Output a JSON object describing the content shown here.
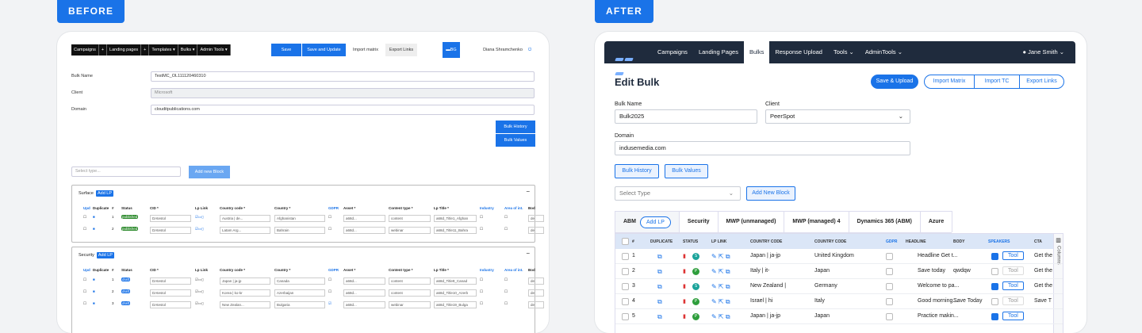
{
  "before_tag": "BEFORE",
  "after_tag": "AFTER",
  "before": {
    "nav": [
      "Campaigns",
      "+",
      "Landing pages",
      "+",
      "Templates ▾",
      "Bulks ▾",
      "Admin Tools ▾"
    ],
    "save": "Save",
    "save_update": "Save and Update",
    "import_matrix": "Import matrix",
    "export_links": "Export Links",
    "bg": "BG",
    "user": "Diana Shramchenko",
    "fields": [
      {
        "label": "Bulk Name",
        "value": "TestMC_OL111120460310"
      },
      {
        "label": "Client",
        "value": "Microsoft"
      },
      {
        "label": "Domain",
        "value": "clouditpublications.com"
      }
    ],
    "bulk_history": "Bulk History",
    "bulk_values": "Bulk Values",
    "select_type": "Select type...",
    "add_block": "Add new Block",
    "add_lp": "Add LP",
    "headers": [
      "Upd",
      "Duplicate",
      "#",
      "Status",
      "CID *",
      "Lp Link",
      "Country code *",
      "Country *",
      "GDPR",
      "Asset *",
      "Content type *",
      "Lp Title *",
      "Industry",
      "Area of int.",
      "Bod"
    ],
    "blocks": [
      {
        "title": "Surface",
        "rows": [
          {
            "n": "1",
            "status": "published",
            "cid": "DAtestol",
            "cc": "Austria | de...",
            "country": "Afghanistan",
            "asset": "a68d...",
            "ctype": "content",
            "title": "a68d_Title1_Afghan",
            "bod": "de"
          },
          {
            "n": "2",
            "status": "published",
            "cid": "DAtestol",
            "cc": "Latam Arg...",
            "country": "Bahrain",
            "asset": "a68d...",
            "ctype": "webinar",
            "title": "a68d_Title11_Bahra",
            "bod": "de"
          }
        ]
      },
      {
        "title": "Security",
        "rows": [
          {
            "n": "1",
            "status": "draft",
            "cid": "DAtestol",
            "cc": "Japan | ja-jp",
            "country": "Canada",
            "asset": "a68d...",
            "ctype": "content",
            "title": "a68d_Title9_Canad",
            "bod": "de"
          },
          {
            "n": "2",
            "status": "draft",
            "cid": "DAtestol",
            "cc": "Korea | ko-kr",
            "country": "Azerbaijan",
            "asset": "a68d...",
            "ctype": "content",
            "title": "a68d_Title10_Azerb",
            "bod": "de"
          },
          {
            "n": "3",
            "status": "draft",
            "cid": "DAtestol",
            "cc": "New Zealan...",
            "country": "Bulgaria",
            "asset": "a68d...",
            "ctype": "webinar",
            "title": "a68d_Title19_Bulga",
            "bod": "de"
          }
        ]
      }
    ]
  },
  "after": {
    "nav": [
      "Campaigns",
      "Landing Pages",
      "Bulks",
      "Response Upload",
      "Tools ⌄",
      "AdminTools ⌄"
    ],
    "user": "Jane Smith ⌄",
    "title": "Edit Bulk",
    "save_upload": "Save & Upload",
    "import_matrix": "Import Matrix",
    "import_tc": "Import TC",
    "export_links": "Export Links",
    "bulk_name_label": "Bulk Name",
    "bulk_name": "Bulk2025",
    "client_label": "Client",
    "client": "PeerSpot",
    "domain_label": "Domain",
    "domain": "indusemedia.com",
    "bulk_history": "Bulk History",
    "bulk_values": "Bulk Values",
    "select_type": "Select Type",
    "add_block": "Add New Block",
    "tabs": [
      "ABM",
      "Security",
      "MWP (unmanaged)",
      "MWP (managed) 4",
      "Dynamics 365 (ABM)",
      "Azure"
    ],
    "add_lp": "Add LP",
    "columns_label": "Columns",
    "headers": [
      "#",
      "DUPLICATE",
      "STATUS",
      "LP LINK",
      "COUNTRY CODE",
      "COUNTRY CODE",
      "GDPR",
      "HEADLINE",
      "BODY",
      "SPEAKERS",
      "CTA"
    ],
    "rows": [
      {
        "n": "1",
        "cc": "Japan | ja-jp",
        "country": "United Kingdom",
        "headline": "Headline Get t...",
        "body": "",
        "speaker": true,
        "cta": "Get the"
      },
      {
        "n": "2",
        "cc": "Italy | it-",
        "country": "Japan",
        "headline": "Save today",
        "body": "qwdqw",
        "speaker": false,
        "cta": "Get the"
      },
      {
        "n": "3",
        "cc": "New Zealand |",
        "country": "Germany",
        "headline": "Welcome to pa...",
        "body": "",
        "speaker": true,
        "cta": "Get the"
      },
      {
        "n": "4",
        "cc": "Israel | hi",
        "country": "Italy",
        "headline": "Good morning...",
        "body": "Save Today",
        "speaker": false,
        "cta": "Save T"
      },
      {
        "n": "5",
        "cc": "Japan | ja-jp",
        "country": "Japan",
        "headline": "Practice makin...",
        "body": "",
        "speaker": true,
        "cta": ""
      }
    ],
    "tool": "Tool"
  }
}
